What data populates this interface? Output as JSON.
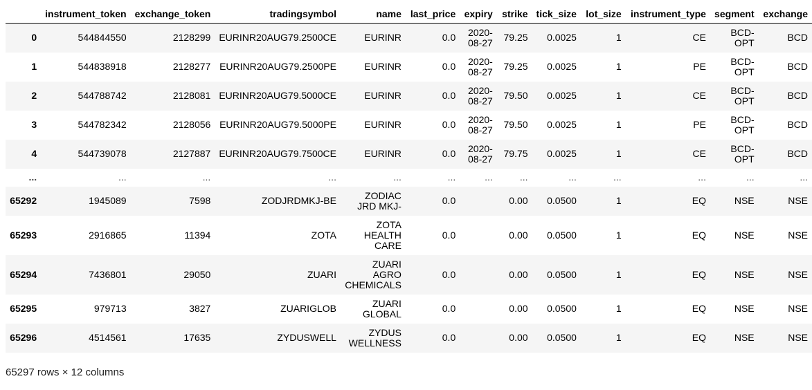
{
  "columns": [
    "",
    "instrument_token",
    "exchange_token",
    "tradingsymbol",
    "name",
    "last_price",
    "expiry",
    "strike",
    "tick_size",
    "lot_size",
    "instrument_type",
    "segment",
    "exchange"
  ],
  "rows": [
    {
      "idx": "0",
      "instrument_token": "544844550",
      "exchange_token": "2128299",
      "tradingsymbol": "EURINR20AUG79.2500CE",
      "name": "EURINR",
      "last_price": "0.0",
      "expiry": "2020-08-27",
      "strike": "79.25",
      "tick_size": "0.0025",
      "lot_size": "1",
      "instrument_type": "CE",
      "segment": "BCD-OPT",
      "exchange": "BCD"
    },
    {
      "idx": "1",
      "instrument_token": "544838918",
      "exchange_token": "2128277",
      "tradingsymbol": "EURINR20AUG79.2500PE",
      "name": "EURINR",
      "last_price": "0.0",
      "expiry": "2020-08-27",
      "strike": "79.25",
      "tick_size": "0.0025",
      "lot_size": "1",
      "instrument_type": "PE",
      "segment": "BCD-OPT",
      "exchange": "BCD"
    },
    {
      "idx": "2",
      "instrument_token": "544788742",
      "exchange_token": "2128081",
      "tradingsymbol": "EURINR20AUG79.5000CE",
      "name": "EURINR",
      "last_price": "0.0",
      "expiry": "2020-08-27",
      "strike": "79.50",
      "tick_size": "0.0025",
      "lot_size": "1",
      "instrument_type": "CE",
      "segment": "BCD-OPT",
      "exchange": "BCD"
    },
    {
      "idx": "3",
      "instrument_token": "544782342",
      "exchange_token": "2128056",
      "tradingsymbol": "EURINR20AUG79.5000PE",
      "name": "EURINR",
      "last_price": "0.0",
      "expiry": "2020-08-27",
      "strike": "79.50",
      "tick_size": "0.0025",
      "lot_size": "1",
      "instrument_type": "PE",
      "segment": "BCD-OPT",
      "exchange": "BCD"
    },
    {
      "idx": "4",
      "instrument_token": "544739078",
      "exchange_token": "2127887",
      "tradingsymbol": "EURINR20AUG79.7500CE",
      "name": "EURINR",
      "last_price": "0.0",
      "expiry": "2020-08-27",
      "strike": "79.75",
      "tick_size": "0.0025",
      "lot_size": "1",
      "instrument_type": "CE",
      "segment": "BCD-OPT",
      "exchange": "BCD"
    },
    {
      "idx": "...",
      "instrument_token": "...",
      "exchange_token": "...",
      "tradingsymbol": "...",
      "name": "...",
      "last_price": "...",
      "expiry": "...",
      "strike": "...",
      "tick_size": "...",
      "lot_size": "...",
      "instrument_type": "...",
      "segment": "...",
      "exchange": "..."
    },
    {
      "idx": "65292",
      "instrument_token": "1945089",
      "exchange_token": "7598",
      "tradingsymbol": "ZODJRDMKJ-BE",
      "name": "ZODIAC JRD MKJ-",
      "last_price": "0.0",
      "expiry": "",
      "strike": "0.00",
      "tick_size": "0.0500",
      "lot_size": "1",
      "instrument_type": "EQ",
      "segment": "NSE",
      "exchange": "NSE"
    },
    {
      "idx": "65293",
      "instrument_token": "2916865",
      "exchange_token": "11394",
      "tradingsymbol": "ZOTA",
      "name": "ZOTA HEALTH CARE",
      "last_price": "0.0",
      "expiry": "",
      "strike": "0.00",
      "tick_size": "0.0500",
      "lot_size": "1",
      "instrument_type": "EQ",
      "segment": "NSE",
      "exchange": "NSE"
    },
    {
      "idx": "65294",
      "instrument_token": "7436801",
      "exchange_token": "29050",
      "tradingsymbol": "ZUARI",
      "name": "ZUARI AGRO CHEMICALS",
      "last_price": "0.0",
      "expiry": "",
      "strike": "0.00",
      "tick_size": "0.0500",
      "lot_size": "1",
      "instrument_type": "EQ",
      "segment": "NSE",
      "exchange": "NSE"
    },
    {
      "idx": "65295",
      "instrument_token": "979713",
      "exchange_token": "3827",
      "tradingsymbol": "ZUARIGLOB",
      "name": "ZUARI GLOBAL",
      "last_price": "0.0",
      "expiry": "",
      "strike": "0.00",
      "tick_size": "0.0500",
      "lot_size": "1",
      "instrument_type": "EQ",
      "segment": "NSE",
      "exchange": "NSE"
    },
    {
      "idx": "65296",
      "instrument_token": "4514561",
      "exchange_token": "17635",
      "tradingsymbol": "ZYDUSWELL",
      "name": "ZYDUS WELLNESS",
      "last_price": "0.0",
      "expiry": "",
      "strike": "0.00",
      "tick_size": "0.0500",
      "lot_size": "1",
      "instrument_type": "EQ",
      "segment": "NSE",
      "exchange": "NSE"
    }
  ],
  "footer": "65297 rows × 12 columns"
}
